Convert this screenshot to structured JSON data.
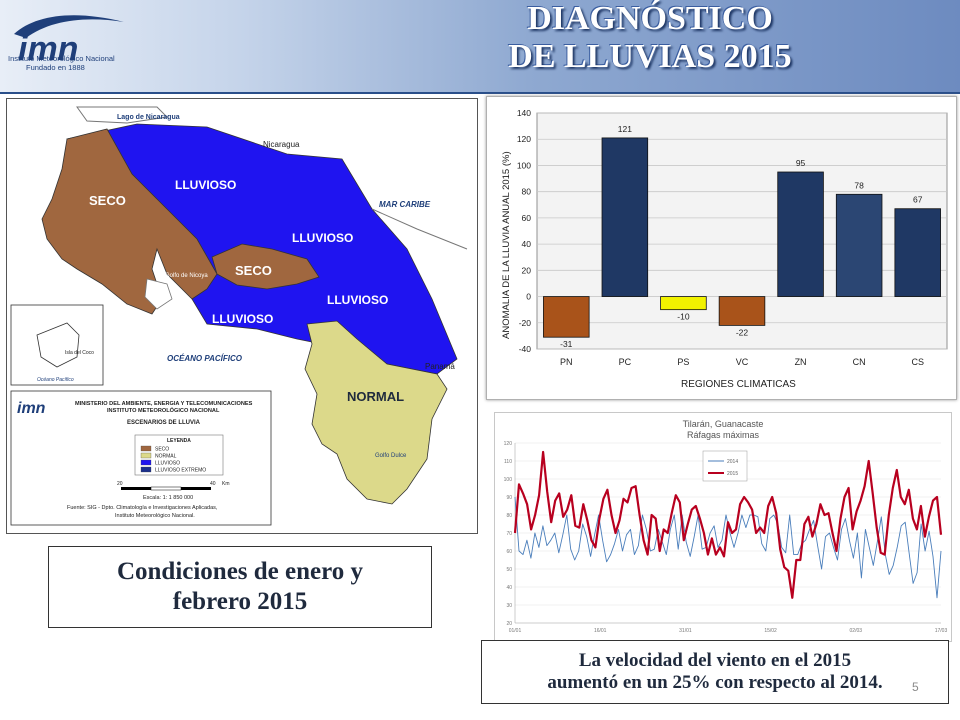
{
  "header": {
    "title_line1": "DIAGNÓSTICO",
    "title_line2": "DE LLUVIAS 2015",
    "logo_text": "imn",
    "logo_caption_line1": "Instituto Meteorológico Nacional",
    "logo_caption_line2": "Fundado en 1888"
  },
  "map": {
    "labels": {
      "lago": "Lago de Nicaragua",
      "nicaragua": "Nicaragua",
      "mar_caribe": "MAR CARIBE",
      "oceano": "OCÉANO PACÍFICO",
      "panama": "Panamá",
      "golfo_nicoya": "Golfo de Nicoya",
      "golfo_dulce": "Golfo Dulce",
      "isla_coco": "Isla del Coco",
      "oceano_small": "Océano Pacífico",
      "seco_1": "SECO",
      "seco_2": "SECO",
      "lluvioso_1": "LLUVIOSO",
      "lluvioso_2": "LLUVIOSO",
      "lluvioso_3": "LLUVIOSO",
      "lluvioso_4": "LLUVIOSO",
      "normal": "NORMAL"
    },
    "info": {
      "ministry_line1": "MINISTERIO DEL AMBIENTE, ENERGIA Y TELECOMUNICACIONES",
      "ministry_line2": "INSTITUTO METEOROLÓGICO NACIONAL",
      "scenario": "ESCENARIOS DE LLUVIA",
      "legend_title": "LEYENDA",
      "legend": [
        {
          "label": "SECO",
          "color": "#a0673f"
        },
        {
          "label": "NORMAL",
          "color": "#dcd98a"
        },
        {
          "label": "LLUVIOSO",
          "color": "#1f14f0"
        },
        {
          "label": "LLUVIOSO EXTREMO",
          "color": "#1b2f8c"
        }
      ],
      "scale_left": "20",
      "scale_right": "40",
      "scale_unit": "Km",
      "scale_text": "Escala: 1: 1 850 000",
      "source_line1": "Fuente: SIG - Dpto. Climatología e Investigaciones Aplicadas,",
      "source_line2": "Instituto Meteorológico Nacional."
    },
    "colors": {
      "seco": "#a0673f",
      "lluvioso": "#1f14f0",
      "normal": "#dcd98a"
    }
  },
  "captions": {
    "left": "Condiciones de enero y febrero 2015",
    "right_line1": "La velocidad del viento en el 2015",
    "right_line2": "aumentó en un 25% con respecto al 2014."
  },
  "slide_number": "5",
  "chart_data": [
    {
      "type": "bar",
      "title": "",
      "xlabel": "REGIONES CLIMATICAS",
      "ylabel": "ANOMALIA DE LA LLUVIA ANUAL 2015 (%)",
      "categories": [
        "PN",
        "PC",
        "PS",
        "VC",
        "ZN",
        "CN",
        "CS"
      ],
      "values": [
        -31,
        121,
        -10,
        -22,
        95,
        78,
        67
      ],
      "value_labels": [
        "-31",
        "121",
        "-10",
        "-22",
        "95",
        "78",
        "67"
      ],
      "colors": [
        "#a9531a",
        "#1f3864",
        "#f2f200",
        "#a9531a",
        "#1f3864",
        "#2b4673",
        "#1f3864"
      ],
      "ylim": [
        -40,
        140
      ],
      "yticks": [
        -40,
        -20,
        0,
        20,
        40,
        60,
        80,
        100,
        120,
        140
      ],
      "grid": true
    },
    {
      "type": "line",
      "title": "Tilarán, Guanacaste",
      "subtitle": "Ráfagas máximas",
      "xticks": [
        "01/01",
        "16/01",
        "31/01",
        "15/02",
        "02/03",
        "17/03"
      ],
      "yticks": [
        20,
        30,
        40,
        50,
        60,
        70,
        80,
        90,
        100,
        110,
        120
      ],
      "ylim": [
        20,
        120
      ],
      "legend_position": "top-right",
      "series": [
        {
          "name": "2014",
          "color": "#4a7ebb",
          "values": [
            90,
            60,
            58,
            66,
            56,
            70,
            62,
            74,
            63,
            66,
            70,
            59,
            69,
            80,
            61,
            55,
            60,
            75,
            68,
            57,
            69,
            80,
            66,
            54,
            58,
            64,
            72,
            60,
            69,
            72,
            58,
            63,
            80,
            72,
            60,
            61,
            72,
            65,
            58,
            72,
            80,
            61,
            80,
            65,
            57,
            68,
            80,
            61,
            62,
            70,
            74,
            62,
            66,
            80,
            70,
            62,
            70,
            80,
            73,
            80,
            80,
            79,
            64,
            60,
            78,
            80,
            75,
            62,
            59,
            80,
            58,
            58,
            64,
            66,
            72,
            77,
            63,
            50,
            68,
            70,
            62,
            55,
            72,
            78,
            66,
            56,
            70,
            45,
            72,
            62,
            52,
            65,
            79,
            58,
            47,
            52,
            62,
            74,
            76,
            59,
            42,
            48,
            75,
            60,
            71,
            57,
            34,
            60
          ]
        },
        {
          "name": "2015",
          "color": "#b8001f",
          "values": [
            70,
            97,
            92,
            86,
            72,
            80,
            91,
            115,
            93,
            76,
            88,
            92,
            79,
            83,
            91,
            74,
            73,
            86,
            77,
            66,
            62,
            78,
            89,
            94,
            80,
            70,
            77,
            89,
            87,
            95,
            96,
            80,
            66,
            58,
            80,
            78,
            60,
            72,
            70,
            81,
            91,
            87,
            66,
            75,
            83,
            85,
            78,
            70,
            58,
            67,
            58,
            62,
            57,
            76,
            70,
            72,
            86,
            90,
            87,
            83,
            70,
            73,
            70,
            85,
            90,
            81,
            61,
            51,
            49,
            34,
            55,
            55,
            75,
            79,
            68,
            75,
            86,
            80,
            81,
            70,
            60,
            78,
            90,
            95,
            72,
            82,
            88,
            96,
            110,
            92,
            73,
            59,
            58,
            80,
            95,
            105,
            90,
            86,
            94,
            78,
            72,
            85,
            68,
            79,
            88,
            90,
            69
          ]
        }
      ]
    }
  ]
}
